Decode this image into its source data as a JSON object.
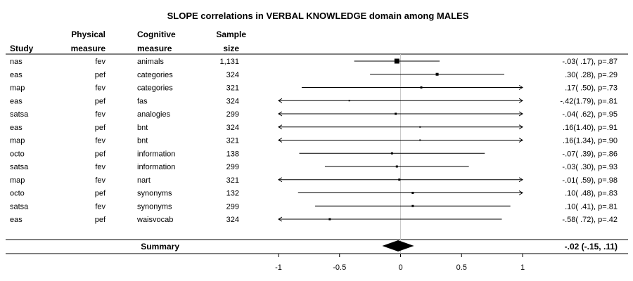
{
  "chart_data": {
    "type": "forest",
    "title": "SLOPE correlations in VERBAL KNOWLEDGE domain among MALES",
    "columns": {
      "study": "Study",
      "physical": [
        "Physical",
        "measure"
      ],
      "cognitive": [
        "Cognitive",
        "measure"
      ],
      "sample": [
        "Sample",
        "size"
      ]
    },
    "xlim": [
      -1,
      1
    ],
    "xticks": [
      {
        "value": -1,
        "label": "-1"
      },
      {
        "value": -0.5,
        "label": "-0.5"
      },
      {
        "value": 0,
        "label": "0"
      },
      {
        "value": 0.5,
        "label": "0.5"
      },
      {
        "value": 1,
        "label": "1"
      }
    ],
    "rows": [
      {
        "study": "nas",
        "physical": "fev",
        "cognitive": "animals",
        "n": "1,131",
        "est": -0.03,
        "lo": -0.38,
        "hi": 0.32,
        "w": 7,
        "label": "-.03( .17), p=.87"
      },
      {
        "study": "eas",
        "physical": "pef",
        "cognitive": "categories",
        "n": "324",
        "est": 0.3,
        "lo": -0.25,
        "hi": 0.85,
        "w": 4,
        "label": ".30( .28), p=.29"
      },
      {
        "study": "map",
        "physical": "fev",
        "cognitive": "categories",
        "n": "321",
        "est": 0.17,
        "lo": -0.81,
        "hi": 1.15,
        "w": 3,
        "label": ".17( .50), p=.73"
      },
      {
        "study": "eas",
        "physical": "pef",
        "cognitive": "fas",
        "n": "324",
        "est": -0.42,
        "lo": -3.93,
        "hi": 3.09,
        "w": 2,
        "label": "-.42(1.79), p=.81"
      },
      {
        "study": "satsa",
        "physical": "fev",
        "cognitive": "analogies",
        "n": "299",
        "est": -0.04,
        "lo": -1.26,
        "hi": 1.18,
        "w": 3,
        "label": "-.04( .62), p=.95"
      },
      {
        "study": "eas",
        "physical": "pef",
        "cognitive": "bnt",
        "n": "324",
        "est": 0.16,
        "lo": -2.58,
        "hi": 2.9,
        "w": 2,
        "label": ".16(1.40), p=.91"
      },
      {
        "study": "map",
        "physical": "fev",
        "cognitive": "bnt",
        "n": "321",
        "est": 0.16,
        "lo": -2.47,
        "hi": 2.79,
        "w": 2,
        "label": ".16(1.34), p=.90"
      },
      {
        "study": "octo",
        "physical": "pef",
        "cognitive": "information",
        "n": "138",
        "est": -0.07,
        "lo": -0.83,
        "hi": 0.69,
        "w": 3,
        "label": "-.07( .39), p=.86"
      },
      {
        "study": "satsa",
        "physical": "fev",
        "cognitive": "information",
        "n": "299",
        "est": -0.03,
        "lo": -0.62,
        "hi": 0.56,
        "w": 3,
        "label": "-.03( .30), p=.93"
      },
      {
        "study": "map",
        "physical": "fev",
        "cognitive": "nart",
        "n": "321",
        "est": -0.01,
        "lo": -1.17,
        "hi": 1.15,
        "w": 3,
        "label": "-.01( .59), p=.98"
      },
      {
        "study": "octo",
        "physical": "pef",
        "cognitive": "synonyms",
        "n": "132",
        "est": 0.1,
        "lo": -0.84,
        "hi": 1.04,
        "w": 3,
        "label": ".10( .48), p=.83"
      },
      {
        "study": "satsa",
        "physical": "fev",
        "cognitive": "synonyms",
        "n": "299",
        "est": 0.1,
        "lo": -0.7,
        "hi": 0.9,
        "w": 3,
        "label": ".10( .41), p=.81"
      },
      {
        "study": "eas",
        "physical": "pef",
        "cognitive": "waisvocab",
        "n": "324",
        "est": -0.58,
        "lo": -1.99,
        "hi": 0.83,
        "w": 3,
        "label": "-.58( .72), p=.42"
      }
    ],
    "summary": {
      "label": "Summary",
      "est": -0.02,
      "lo": -0.15,
      "hi": 0.11,
      "text": "-.02 (-.15, .11)"
    },
    "colors": {
      "ink": "#000000",
      "zero_line": "#c8c8c8"
    }
  }
}
